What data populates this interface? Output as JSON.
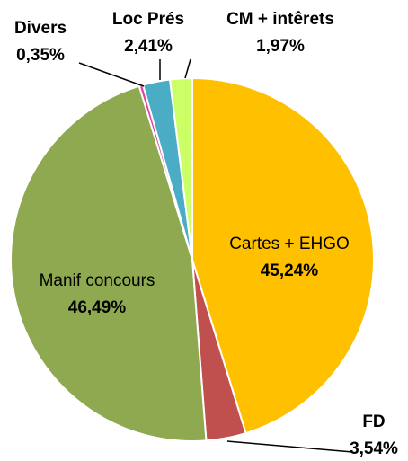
{
  "chart_data": {
    "type": "pie",
    "categories": [
      "Cartes + EHGO",
      "FD",
      "Manif concours",
      "Divers",
      "Loc Prés",
      "CM + intêrets"
    ],
    "values": [
      45.24,
      3.54,
      46.49,
      0.35,
      2.41,
      1.97
    ],
    "value_labels": [
      "45,24%",
      "3,54%",
      "46,49%",
      "0,35%",
      "2,41%",
      "1,97%"
    ],
    "colors": [
      "#FFC000",
      "#C0504D",
      "#8EA94F",
      "#E040A0",
      "#4BACC6",
      "#CCFF66"
    ]
  }
}
